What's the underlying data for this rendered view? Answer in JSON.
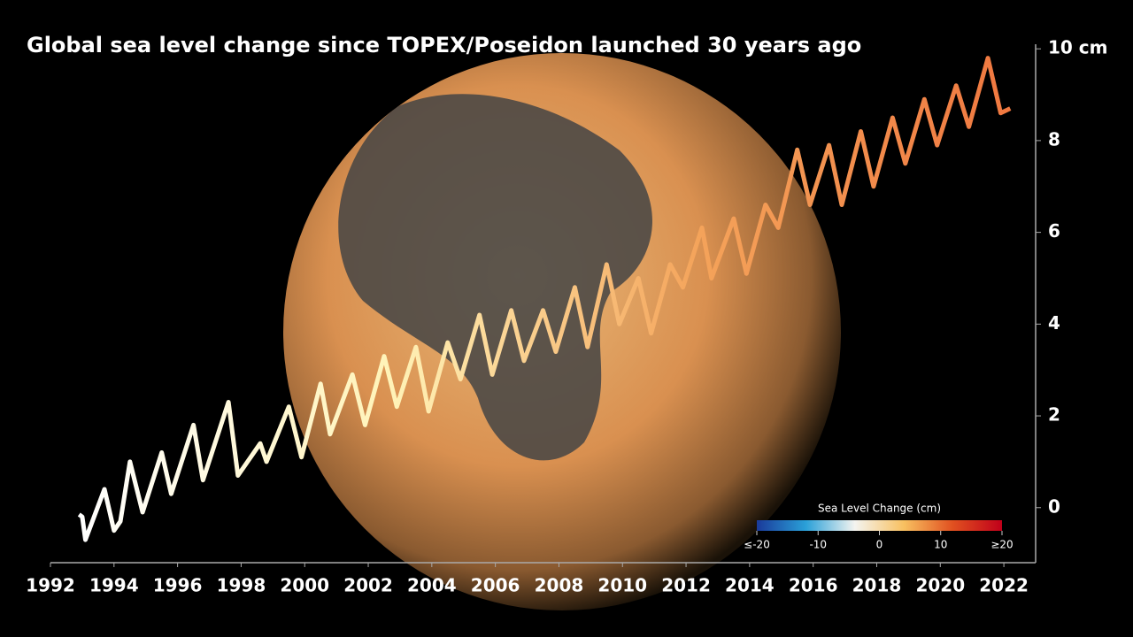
{
  "chart_data": {
    "type": "line",
    "title": "Global sea level change since TOPEX/Poseidon launched 30 years ago",
    "xlim": [
      1992,
      2023
    ],
    "ylim": [
      -1.2,
      10.1
    ],
    "xticks": [
      1992,
      1994,
      1996,
      1998,
      2000,
      2002,
      2004,
      2006,
      2008,
      2010,
      2012,
      2014,
      2016,
      2018,
      2020,
      2022
    ],
    "yticks": [
      0,
      2,
      4,
      6,
      8,
      {
        "value": 10,
        "label": "10 cm"
      }
    ],
    "series": [
      {
        "colors": [
          "#ffffff",
          "#fff3b8",
          "#f4a35a",
          "#f07840"
        ],
        "x": [
          1992.9,
          1993.0,
          1993.1,
          1993.7,
          1994.0,
          1994.2,
          1994.5,
          1994.9,
          1995.5,
          1995.8,
          1996.5,
          1996.8,
          1997.6,
          1997.9,
          1998.6,
          1998.8,
          1999.5,
          1999.9,
          2000.5,
          2000.8,
          2001.5,
          2001.9,
          2002.5,
          2002.9,
          2003.5,
          2003.9,
          2004.5,
          2004.9,
          2005.5,
          2005.9,
          2006.5,
          2006.9,
          2007.5,
          2007.9,
          2008.5,
          2008.9,
          2009.5,
          2009.9,
          2010.5,
          2010.9,
          2011.5,
          2011.9,
          2012.5,
          2012.8,
          2013.5,
          2013.9,
          2014.5,
          2014.9,
          2015.5,
          2015.9,
          2016.5,
          2016.9,
          2017.5,
          2017.9,
          2018.5,
          2018.9,
          2019.5,
          2019.9,
          2020.5,
          2020.9,
          2021.5,
          2021.9,
          2022.2
        ],
        "values": [
          -0.15,
          -0.2,
          -0.7,
          0.4,
          -0.5,
          -0.3,
          1.0,
          -0.1,
          1.2,
          0.3,
          1.8,
          0.6,
          2.3,
          0.7,
          1.4,
          1.0,
          2.2,
          1.1,
          2.7,
          1.6,
          2.9,
          1.8,
          3.3,
          2.2,
          3.5,
          2.1,
          3.6,
          2.8,
          4.2,
          2.9,
          4.3,
          3.2,
          4.3,
          3.4,
          4.8,
          3.5,
          5.3,
          4.0,
          5.0,
          3.8,
          5.3,
          4.8,
          6.1,
          5.0,
          6.3,
          5.1,
          6.6,
          6.1,
          7.8,
          6.6,
          7.9,
          6.6,
          8.2,
          7.0,
          8.5,
          7.5,
          8.9,
          7.9,
          9.2,
          8.3,
          9.8,
          8.6,
          8.7
        ]
      }
    ],
    "colorbar": {
      "title": "Sea Level Change (cm)",
      "lim": [
        -20,
        20
      ],
      "colors": [
        "#1a3a9a",
        "#2aa0d8",
        "#f4f4f0",
        "#f8c060",
        "#e05020",
        "#c0001a"
      ],
      "ticks": [
        {
          "value": -20,
          "label": "≤-20"
        },
        -10,
        0,
        10,
        {
          "value": 20,
          "label": "≥20"
        }
      ]
    }
  }
}
